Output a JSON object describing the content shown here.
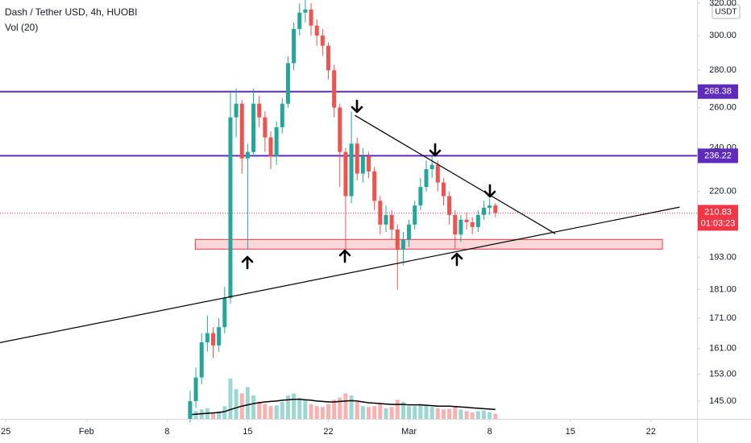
{
  "chart_data": {
    "type": "candlestick",
    "title": "Dash / Tether USD, 4h, HUOBI",
    "volume_title": "Vol (20)",
    "currency": "USDT",
    "x": [
      16,
      16.5,
      17,
      17.5,
      18,
      18.5,
      19,
      19.5,
      20,
      20.5,
      21,
      21.5,
      22,
      22.5,
      23,
      23.5,
      24,
      24.5,
      25,
      25.5,
      26,
      26.5,
      27,
      27.5,
      28,
      28.5,
      29,
      29.5,
      30,
      30.5,
      31,
      31.5,
      32,
      32.5,
      33,
      33.5,
      34,
      34.5,
      35,
      35.5,
      36,
      36.5,
      37,
      37.5,
      38,
      38.5,
      39,
      39.5,
      40,
      40.5,
      41,
      41.5,
      42,
      42.5
    ],
    "open": [
      140,
      145,
      152,
      163,
      166,
      162,
      168,
      178,
      255,
      262,
      235,
      238,
      262,
      255,
      245,
      236,
      250,
      262,
      284,
      304,
      314,
      316,
      306,
      300,
      294,
      280,
      260,
      238,
      218,
      242,
      228,
      236,
      229,
      216,
      206,
      210,
      204,
      196,
      200,
      206,
      214,
      222,
      230,
      232,
      224,
      218,
      210,
      202,
      208,
      207,
      205,
      210,
      213,
      214
    ],
    "high": [
      148,
      155,
      166,
      172,
      168,
      171,
      182,
      268,
      270,
      264,
      242,
      270,
      266,
      258,
      248,
      253,
      265,
      288,
      308,
      320,
      325,
      320,
      310,
      304,
      296,
      283,
      262,
      240,
      258,
      245,
      240,
      238,
      231,
      218,
      214,
      212,
      206,
      203,
      208,
      216,
      226,
      234,
      236,
      234,
      226,
      220,
      212,
      210,
      211,
      209,
      212,
      216,
      217,
      215
    ],
    "low": [
      139,
      143,
      150,
      160,
      158,
      160,
      166,
      176,
      245,
      228,
      196,
      236,
      250,
      238,
      230,
      232,
      247,
      260,
      280,
      300,
      308,
      300,
      294,
      288,
      275,
      255,
      222,
      196,
      215,
      225,
      224,
      226,
      212,
      202,
      203,
      200,
      181,
      190,
      197,
      204,
      212,
      220,
      226,
      220,
      214,
      206,
      196,
      199,
      204,
      202,
      203,
      208,
      210,
      209
    ],
    "close": [
      145,
      152,
      163,
      166,
      162,
      168,
      178,
      255,
      262,
      235,
      238,
      262,
      255,
      245,
      236,
      250,
      262,
      284,
      304,
      314,
      316,
      306,
      300,
      294,
      280,
      260,
      238,
      218,
      242,
      228,
      236,
      229,
      216,
      206,
      210,
      204,
      196,
      200,
      206,
      214,
      222,
      230,
      232,
      224,
      218,
      210,
      202,
      208,
      207,
      205,
      210,
      213,
      214,
      210.83
    ],
    "volume": [
      20,
      18,
      22,
      25,
      15,
      18,
      30,
      95,
      70,
      60,
      75,
      55,
      40,
      35,
      30,
      32,
      40,
      55,
      60,
      50,
      45,
      35,
      30,
      28,
      35,
      45,
      50,
      60,
      55,
      40,
      30,
      28,
      30,
      35,
      25,
      28,
      45,
      40,
      30,
      30,
      35,
      32,
      28,
      25,
      22,
      24,
      30,
      22,
      18,
      15,
      18,
      20,
      16,
      12
    ],
    "volume_ma": [
      10,
      11,
      12,
      13,
      14,
      15,
      17,
      22,
      26,
      30,
      33,
      36,
      38,
      40,
      41,
      42,
      44,
      45,
      46,
      46,
      45,
      44,
      42,
      41,
      40,
      40,
      41,
      42,
      43,
      42,
      40,
      38,
      37,
      36,
      35,
      34,
      34,
      34,
      33,
      33,
      33,
      32,
      31,
      30,
      30,
      30,
      29,
      28,
      27,
      26,
      25,
      24,
      23,
      22
    ],
    "up_color": "#26a69a",
    "down_color": "#ef5350",
    "log_scale": true,
    "ylim": [
      140,
      322
    ],
    "yticks": [
      {
        "value": 145,
        "label": "145.00"
      },
      {
        "value": 153,
        "label": "153.00"
      },
      {
        "value": 161,
        "label": "161.00"
      },
      {
        "value": 171,
        "label": "171.00"
      },
      {
        "value": 181,
        "label": "181.00"
      },
      {
        "value": 193,
        "label": "193.00"
      },
      {
        "value": 220,
        "label": "220.00"
      },
      {
        "value": 240,
        "label": "240.00"
      },
      {
        "value": 260,
        "label": "260.00"
      },
      {
        "value": 280,
        "label": "280.00"
      },
      {
        "value": 300,
        "label": "300.00"
      },
      {
        "value": 320,
        "label": "320.00"
      }
    ],
    "xlim": [
      -0.5,
      60
    ],
    "xticks": [
      {
        "value": 0,
        "label": "25"
      },
      {
        "value": 7,
        "label": "Feb"
      },
      {
        "value": 14,
        "label": "8"
      },
      {
        "value": 21,
        "label": "15"
      },
      {
        "value": 28,
        "label": "22"
      },
      {
        "value": 35,
        "label": "Mar"
      },
      {
        "value": 42,
        "label": "8"
      },
      {
        "value": 49,
        "label": "15"
      },
      {
        "value": 56,
        "label": "22"
      }
    ],
    "levels": [
      {
        "value": 268.38,
        "color": "#5e2bbd"
      },
      {
        "value": 236.22,
        "color": "#5e2bbd"
      }
    ],
    "last_price": 210.83,
    "last_price_color": "#f23645",
    "countdown": "01:03:23",
    "trend_lines": [
      {
        "x": [
          30.3,
          47.7
        ],
        "y": [
          256,
          202.3
        ]
      },
      {
        "x": [
          -0.5,
          58.5
        ],
        "y": [
          162.9,
          213.3
        ]
      }
    ],
    "zone": {
      "x": [
        16.45,
        57
      ],
      "y": [
        196.2,
        200
      ],
      "color": "#f23645"
    }
  }
}
